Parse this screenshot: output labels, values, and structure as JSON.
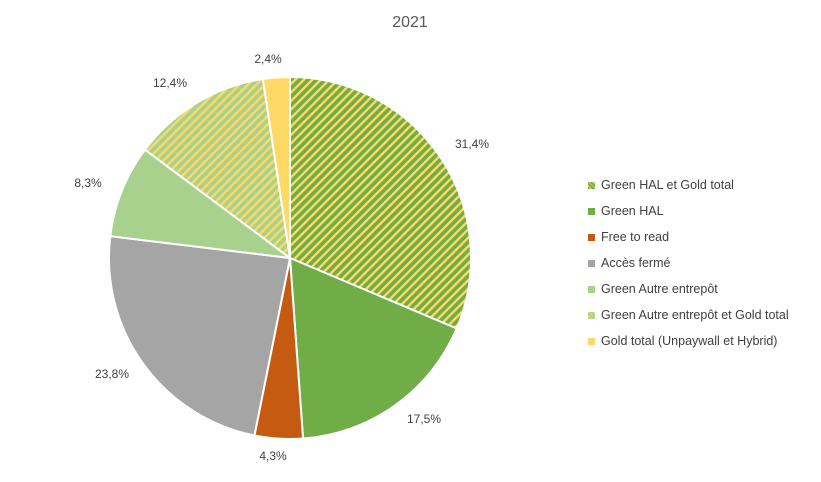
{
  "chart_data": {
    "type": "pie",
    "title": "2021",
    "series": [
      {
        "name": "Green HAL et Gold total",
        "value": 31.4,
        "label": "31,4%",
        "color": "#70AD47",
        "hatch": "#FFD966"
      },
      {
        "name": "Green HAL",
        "value": 17.5,
        "label": "17,5%",
        "color": "#70AD47",
        "hatch": null
      },
      {
        "name": "Free to read",
        "value": 4.3,
        "label": "4,3%",
        "color": "#C55A11",
        "hatch": null
      },
      {
        "name": "Accès fermé",
        "value": 23.8,
        "label": "23,8%",
        "color": "#A5A5A5",
        "hatch": null
      },
      {
        "name": "Green Autre entrepôt",
        "value": 8.3,
        "label": "8,3%",
        "color": "#A9D18E",
        "hatch": null
      },
      {
        "name": "Green Autre entrepôt et Gold total",
        "value": 12.4,
        "label": "12,4%",
        "color": "#A9D18E",
        "hatch": "#FFD966"
      },
      {
        "name": "Gold total (Unpaywall et Hybrid)",
        "value": 2.4,
        "label": "2,4%",
        "color": "#FFD966",
        "hatch": null
      }
    ],
    "legend_position": "right"
  }
}
